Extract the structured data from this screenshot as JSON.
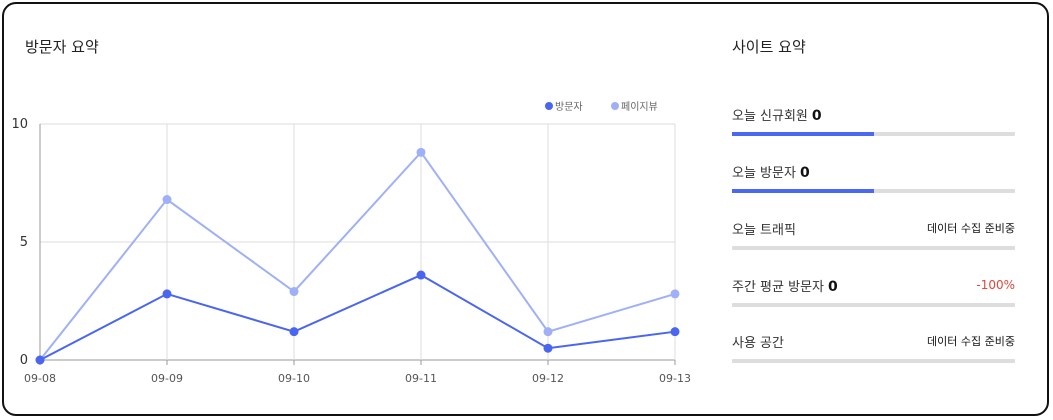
{
  "left_panel": {
    "title": "방문자 요약"
  },
  "right_panel": {
    "title": "사이트 요약"
  },
  "chart_data": {
    "type": "line",
    "x": [
      "09-08",
      "09-09",
      "09-10",
      "09-11",
      "09-12",
      "09-13"
    ],
    "series": [
      {
        "name": "방문자",
        "values": [
          0,
          2.8,
          1.2,
          3.6,
          0.5,
          1.2
        ],
        "color": "#4a66f0"
      },
      {
        "name": "페이지뷰",
        "values": [
          0,
          6.8,
          2.9,
          8.8,
          1.2,
          2.8
        ],
        "color": "#9fb0f7"
      }
    ],
    "ylim": [
      0,
      10
    ],
    "yticks": [
      "0",
      "5",
      "10"
    ],
    "grid": true,
    "legend_position": "top-right"
  },
  "site_summary": [
    {
      "label": "오늘 신규회원",
      "value": "0",
      "right": "",
      "progress": 0.5
    },
    {
      "label": "오늘 방문자",
      "value": "0",
      "right": "",
      "progress": 0.5
    },
    {
      "label": "오늘 트래픽",
      "value": "",
      "right": "데이터 수집 준비중",
      "progress": 0
    },
    {
      "label": "주간 평균 방문자",
      "value": "0",
      "right": "-100%",
      "right_negative": true,
      "progress": 0
    },
    {
      "label": "사용 공간",
      "value": "",
      "right": "데이터 수집 준비중",
      "progress": 0
    }
  ]
}
